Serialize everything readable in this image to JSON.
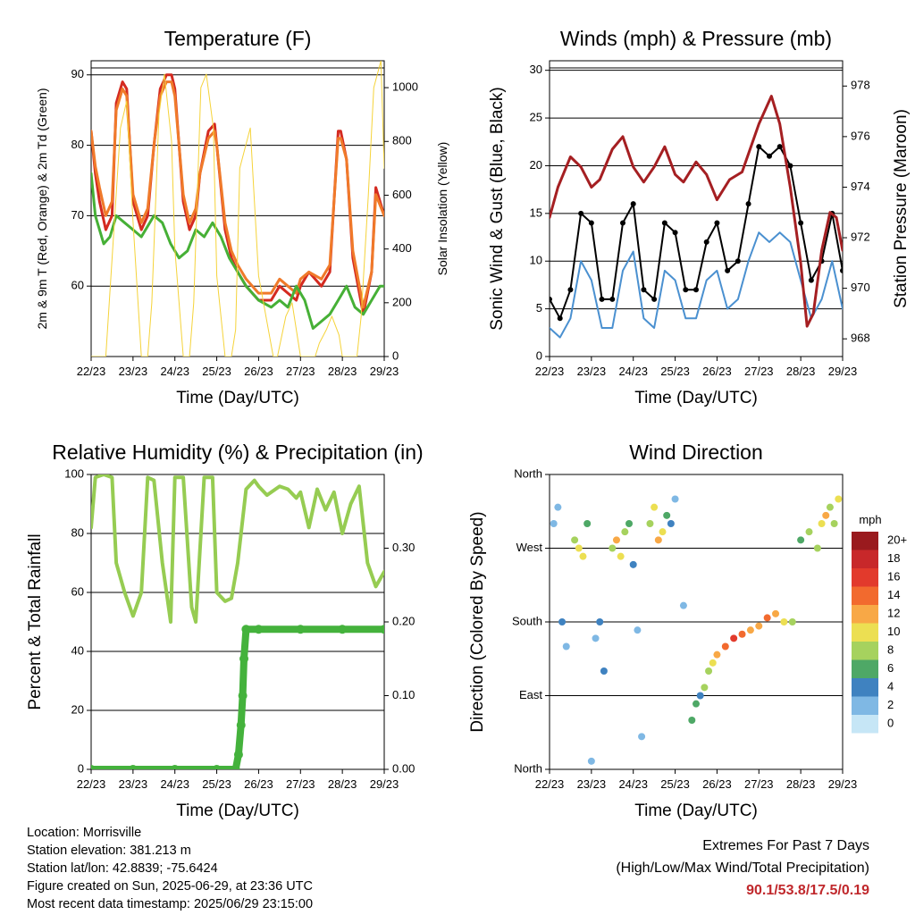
{
  "x_ticks": [
    "22/23",
    "23/23",
    "24/23",
    "25/23",
    "26/23",
    "27/23",
    "28/23",
    "29/23"
  ],
  "colors": {
    "temp_2m": "#d42a20",
    "temp_9m": "#f07a2a",
    "dewpoint": "#46b036",
    "solar": "#f5d33a",
    "wind": "#4a90d0",
    "gust": "#000000",
    "pressure": "#a51f22",
    "rh": "#96cc52",
    "precip": "#44b23c",
    "highlight": "#c0282c"
  },
  "chart_data": [
    {
      "id": "temperature",
      "type": "line",
      "title": "Temperature (F)",
      "xlabel": "Time (Day/UTC)",
      "ylabel": "2m & 9m T (Red, Orange) & 2m Td (Green)",
      "ylabel_right": "Solar Insolation (Yellow)",
      "xlim": [
        0,
        7
      ],
      "ylim": [
        50,
        92
      ],
      "yticks": [
        60,
        70,
        80,
        90
      ],
      "ylim_right": [
        0,
        1100
      ],
      "yticks_right": [
        0,
        200,
        400,
        600,
        800,
        1000
      ],
      "grid": true,
      "series": [
        {
          "name": "2m T",
          "color": "#d42a20",
          "x": [
            0,
            0.1,
            0.2,
            0.35,
            0.5,
            0.6,
            0.75,
            0.85,
            1.0,
            1.2,
            1.35,
            1.5,
            1.65,
            1.8,
            1.92,
            2.0,
            2.2,
            2.35,
            2.5,
            2.6,
            2.8,
            2.95,
            3.0,
            3.2,
            3.35,
            3.5,
            3.7,
            4.0,
            4.3,
            4.5,
            4.7,
            4.9,
            5.0,
            5.2,
            5.5,
            5.7,
            5.9,
            5.96,
            6.1,
            6.25,
            6.5,
            6.7,
            6.8,
            7.0
          ],
          "y": [
            82,
            76,
            72,
            68,
            70,
            86,
            89,
            88,
            72,
            68,
            70,
            80,
            88,
            90,
            90,
            88,
            72,
            68,
            70,
            76,
            82,
            83,
            80,
            68,
            64,
            62,
            60,
            58,
            58,
            60,
            59,
            58,
            60,
            62,
            60,
            62,
            82,
            82,
            78,
            64,
            56,
            62,
            74,
            70
          ]
        },
        {
          "name": "9m T",
          "color": "#f07a2a",
          "x": [
            0,
            0.1,
            0.2,
            0.35,
            0.5,
            0.6,
            0.75,
            0.85,
            1.0,
            1.2,
            1.35,
            1.5,
            1.65,
            1.8,
            1.92,
            2.0,
            2.2,
            2.35,
            2.5,
            2.6,
            2.8,
            2.95,
            3.0,
            3.2,
            3.35,
            3.5,
            3.7,
            4.0,
            4.3,
            4.5,
            4.7,
            4.9,
            5.0,
            5.2,
            5.5,
            5.7,
            5.9,
            5.96,
            6.1,
            6.25,
            6.5,
            6.7,
            6.8,
            7.0
          ],
          "y": [
            82,
            77,
            74,
            70,
            72,
            85,
            88,
            87,
            73,
            69,
            71,
            80,
            87,
            89,
            89,
            87,
            73,
            69,
            71,
            76,
            81,
            82,
            80,
            69,
            65,
            63,
            61,
            59,
            59,
            61,
            60,
            59,
            61,
            62,
            61,
            63,
            81,
            81,
            78,
            65,
            57,
            62,
            73,
            70
          ]
        },
        {
          "name": "2m Td",
          "color": "#46b036",
          "x": [
            0,
            0.1,
            0.3,
            0.45,
            0.6,
            0.8,
            1.0,
            1.2,
            1.5,
            1.7,
            1.9,
            2.1,
            2.3,
            2.5,
            2.7,
            2.9,
            3.1,
            3.3,
            3.5,
            3.7,
            4.0,
            4.3,
            4.5,
            4.7,
            4.9,
            5.1,
            5.3,
            5.5,
            5.7,
            5.9,
            6.1,
            6.3,
            6.5,
            6.7,
            6.9,
            7.0
          ],
          "y": [
            76,
            70,
            66,
            67,
            70,
            69,
            68,
            67,
            70,
            69,
            66,
            64,
            65,
            68,
            67,
            69,
            67,
            64,
            62,
            60,
            58,
            57,
            58,
            57,
            60,
            58,
            54,
            55,
            56,
            58,
            60,
            57,
            56,
            58,
            60,
            60
          ]
        },
        {
          "name": "Solar",
          "color": "#f5d33a",
          "axis": "right",
          "x": [
            0,
            0.35,
            0.7,
            0.85,
            1.0,
            1.2,
            1.35,
            1.45,
            1.62,
            1.75,
            1.92,
            2.0,
            2.2,
            2.35,
            2.45,
            2.62,
            2.75,
            2.92,
            3.0,
            3.2,
            3.35,
            3.45,
            3.55,
            3.8,
            4.0,
            4.35,
            4.45,
            4.65,
            4.8,
            5.0,
            5.35,
            5.45,
            5.62,
            5.75,
            5.92,
            6.0,
            6.2,
            6.35,
            6.45,
            6.62,
            6.75,
            6.92,
            7.0
          ],
          "y": [
            0,
            0,
            850,
            950,
            500,
            0,
            0,
            200,
            900,
            1050,
            800,
            400,
            0,
            0,
            200,
            1000,
            1050,
            850,
            300,
            0,
            0,
            100,
            700,
            850,
            300,
            0,
            0,
            150,
            200,
            0,
            0,
            50,
            100,
            150,
            80,
            0,
            0,
            0,
            150,
            600,
            1000,
            1100,
            700
          ]
        }
      ]
    },
    {
      "id": "winds",
      "type": "line",
      "title": "Winds (mph) & Pressure (mb)",
      "xlabel": "Time (Day/UTC)",
      "ylabel": "Sonic Wind & Gust (Blue, Black)",
      "ylabel_right": "Station Pressure (Maroon)",
      "xlim": [
        0,
        7
      ],
      "ylim": [
        0,
        31
      ],
      "yticks": [
        0,
        5,
        10,
        15,
        20,
        25,
        30
      ],
      "ylim_right": [
        967.3,
        979
      ],
      "yticks_right": [
        968,
        970,
        972,
        974,
        976,
        978
      ],
      "grid": true,
      "series": [
        {
          "name": "Sonic Wind",
          "color": "#4a90d0",
          "x": [
            0,
            0.25,
            0.5,
            0.75,
            1.0,
            1.25,
            1.5,
            1.75,
            2.0,
            2.25,
            2.5,
            2.75,
            3.0,
            3.25,
            3.5,
            3.75,
            4.0,
            4.25,
            4.5,
            4.75,
            5.0,
            5.25,
            5.5,
            5.75,
            6.0,
            6.25,
            6.5,
            6.75,
            7.0
          ],
          "y": [
            3,
            2,
            4,
            10,
            8,
            3,
            3,
            9,
            11,
            4,
            3,
            9,
            8,
            4,
            4,
            8,
            9,
            5,
            6,
            10,
            13,
            12,
            13,
            12,
            8,
            4,
            6,
            10,
            5
          ]
        },
        {
          "name": "Gust",
          "color": "#000000",
          "x": [
            0,
            0.25,
            0.5,
            0.75,
            1.0,
            1.25,
            1.5,
            1.75,
            2.0,
            2.25,
            2.5,
            2.75,
            3.0,
            3.25,
            3.5,
            3.75,
            4.0,
            4.25,
            4.5,
            4.75,
            5.0,
            5.25,
            5.5,
            5.75,
            6.0,
            6.25,
            6.5,
            6.75,
            7.0
          ],
          "y": [
            6,
            4,
            7,
            15,
            14,
            6,
            6,
            14,
            16,
            7,
            6,
            14,
            13,
            7,
            7,
            12,
            14,
            9,
            10,
            16,
            22,
            21,
            22,
            20,
            14,
            8,
            10,
            15,
            9
          ]
        },
        {
          "name": "Pressure",
          "color": "#a51f22",
          "axis": "right",
          "x": [
            0,
            0.2,
            0.5,
            0.75,
            1.0,
            1.2,
            1.5,
            1.75,
            2.0,
            2.25,
            2.5,
            2.75,
            3.0,
            3.2,
            3.5,
            3.75,
            4.0,
            4.3,
            4.6,
            5.0,
            5.3,
            5.5,
            5.75,
            6.0,
            6.15,
            6.3,
            6.5,
            6.7,
            6.85,
            7.0
          ],
          "y": [
            972.8,
            974,
            975.2,
            974.8,
            974,
            974.3,
            975.5,
            976,
            974.8,
            974.2,
            974.8,
            975.6,
            974.5,
            974.2,
            975,
            974.5,
            973.5,
            974.3,
            974.6,
            976.5,
            977.6,
            976.5,
            974,
            971,
            968.5,
            969,
            971.5,
            973,
            972.8,
            971.5
          ]
        }
      ]
    },
    {
      "id": "humidity",
      "type": "line",
      "title": "Relative Humidity (%) & Precipitation (in)",
      "xlabel": "Time (Day/UTC)",
      "ylabel": "Percent & Total Rainfall",
      "xlim": [
        0,
        7
      ],
      "ylim": [
        0,
        100
      ],
      "yticks": [
        0,
        20,
        40,
        60,
        80,
        100
      ],
      "ylim_right": [
        0,
        0.4
      ],
      "yticks_right": [
        0.0,
        0.1,
        0.2,
        0.3
      ],
      "grid": true,
      "series": [
        {
          "name": "RH",
          "color": "#96cc52",
          "x": [
            0,
            0.1,
            0.3,
            0.5,
            0.6,
            0.8,
            1.0,
            1.2,
            1.35,
            1.5,
            1.7,
            1.9,
            2.0,
            2.2,
            2.4,
            2.5,
            2.7,
            2.9,
            3.0,
            3.2,
            3.35,
            3.5,
            3.7,
            3.9,
            4.0,
            4.2,
            4.5,
            4.7,
            4.9,
            5.0,
            5.2,
            5.4,
            5.6,
            5.8,
            6.0,
            6.2,
            6.4,
            6.6,
            6.8,
            7.0
          ],
          "y": [
            82,
            99,
            100,
            99,
            70,
            60,
            52,
            60,
            99,
            98,
            70,
            50,
            99,
            99,
            55,
            50,
            99,
            99,
            60,
            57,
            58,
            70,
            95,
            98,
            96,
            93,
            96,
            95,
            92,
            94,
            82,
            95,
            88,
            94,
            80,
            90,
            96,
            70,
            62,
            67
          ]
        },
        {
          "name": "Precipitation",
          "color": "#44b23c",
          "axis": "right",
          "x": [
            0,
            1,
            2,
            3,
            3.45,
            3.52,
            3.58,
            3.62,
            3.65,
            3.7,
            4,
            5,
            6,
            7
          ],
          "y": [
            0,
            0,
            0,
            0,
            0,
            0.02,
            0.06,
            0.1,
            0.15,
            0.19,
            0.19,
            0.19,
            0.19,
            0.19
          ]
        }
      ]
    },
    {
      "id": "direction",
      "type": "scatter",
      "title": "Wind Direction",
      "xlabel": "Time (Day/UTC)",
      "ylabel": "Direction (Colored By Speed)",
      "xlim": [
        0,
        7
      ],
      "ylim": [
        0,
        360
      ],
      "ytick_labels": [
        "North",
        "East",
        "South",
        "West",
        "North"
      ],
      "grid": true,
      "legend": {
        "title": "mph",
        "labels": [
          "20+",
          "18",
          "16",
          "14",
          "12",
          "10",
          "8",
          "6",
          "4",
          "2",
          "0"
        ],
        "colors": [
          "#9a1a1e",
          "#c8282a",
          "#e23a2c",
          "#f26a2e",
          "#f8a846",
          "#ecdf52",
          "#a6d25e",
          "#4ea866",
          "#3f82c0",
          "#7fb8e4",
          "#c6e6f6"
        ]
      },
      "series": [
        {
          "name": "Direction",
          "x": [
            0.1,
            0.2,
            0.3,
            0.4,
            0.6,
            0.7,
            0.8,
            0.9,
            1.0,
            1.1,
            1.2,
            1.3,
            1.5,
            1.6,
            1.7,
            1.8,
            1.9,
            2.0,
            2.1,
            2.2,
            2.4,
            2.5,
            2.6,
            2.7,
            2.8,
            2.9,
            3.0,
            3.2,
            3.4,
            3.5,
            3.6,
            3.7,
            3.8,
            3.9,
            4.0,
            4.2,
            4.4,
            4.6,
            4.8,
            5.0,
            5.2,
            5.4,
            5.6,
            5.8,
            6.0,
            6.2,
            6.4,
            6.5,
            6.6,
            6.7,
            6.8,
            6.9
          ],
          "y": [
            300,
            320,
            180,
            150,
            280,
            270,
            260,
            300,
            10,
            160,
            180,
            120,
            270,
            280,
            260,
            290,
            300,
            250,
            170,
            40,
            300,
            320,
            280,
            290,
            310,
            300,
            330,
            200,
            60,
            80,
            90,
            100,
            120,
            130,
            140,
            150,
            160,
            165,
            170,
            175,
            185,
            190,
            180,
            180,
            280,
            290,
            270,
            300,
            310,
            320,
            300,
            330
          ],
          "speed": [
            2,
            1,
            3,
            1,
            8,
            10,
            9,
            6,
            1,
            2,
            4,
            3,
            8,
            12,
            10,
            7,
            6,
            4,
            2,
            1,
            7,
            10,
            12,
            9,
            5,
            3,
            2,
            2,
            5,
            6,
            4,
            8,
            7,
            10,
            12,
            14,
            15,
            13,
            12,
            11,
            13,
            12,
            10,
            8,
            6,
            8,
            7,
            10,
            12,
            8,
            7,
            9
          ]
        }
      ]
    }
  ],
  "info": {
    "location": "Location: Morrisville",
    "elevation": "Station elevation: 381.213 m",
    "latlon": "Station lat/lon: 42.8839; -75.6424",
    "created": "Figure created on Sun, 2025-06-29, at 23:36 UTC",
    "recent": "Most recent data timestamp: 2025/06/29 23:15:00"
  },
  "extremes": {
    "title": "Extremes For Past 7 Days",
    "subtitle": "(High/Low/Max Wind/Total Precipitation)",
    "values": "90.1/53.8/17.5/0.19"
  }
}
